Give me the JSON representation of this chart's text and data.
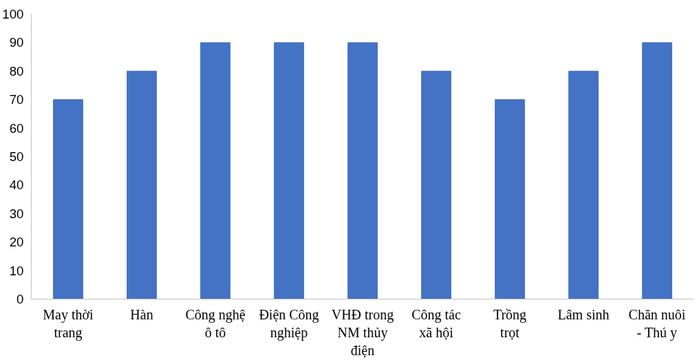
{
  "chart_data": {
    "type": "bar",
    "categories": [
      "May thời trang",
      "Hàn",
      "Công nghệ ô tô",
      "Điện Công nghiệp",
      "VHĐ trong NM thủy điện",
      "Công tác xã hội",
      "Trồng trọt",
      "Lâm sinh",
      "Chăn nuôi - Thú y"
    ],
    "values": [
      70,
      80,
      90,
      90,
      90,
      80,
      70,
      80,
      90
    ],
    "color": "#4472c4",
    "ylim": [
      0,
      100
    ],
    "yticks": [
      0,
      10,
      20,
      30,
      40,
      50,
      60,
      70,
      80,
      90,
      100
    ],
    "grid": false
  }
}
